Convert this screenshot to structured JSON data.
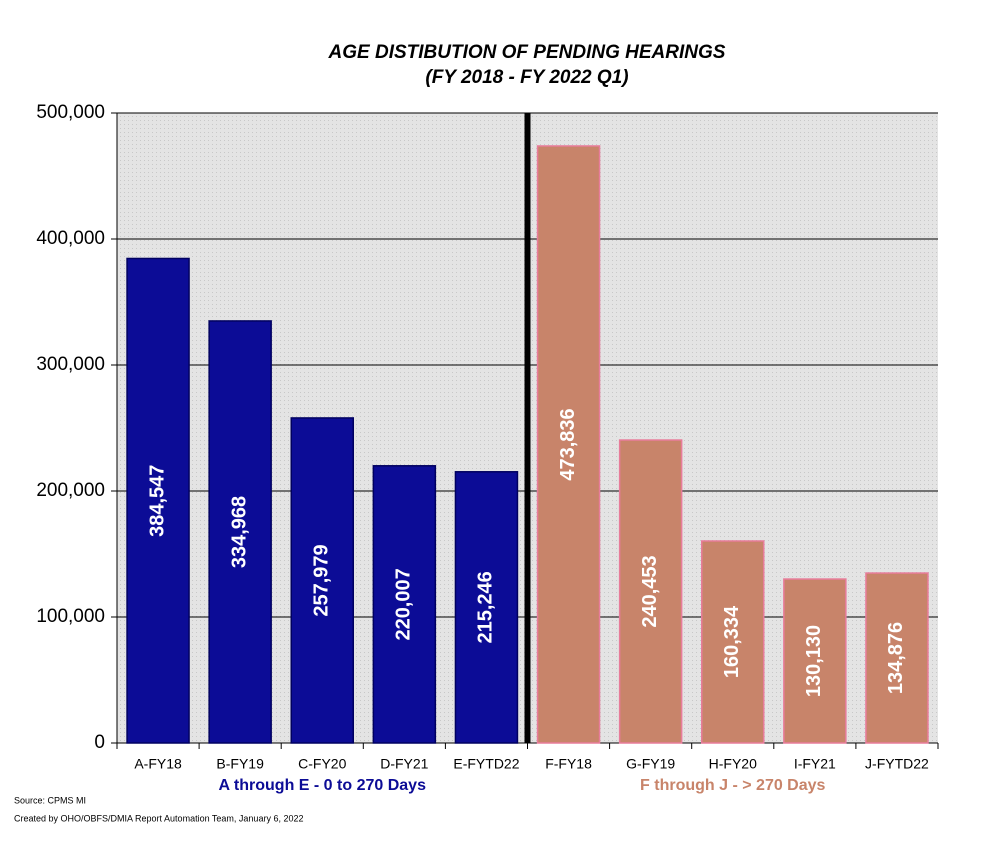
{
  "chart_data": {
    "type": "bar",
    "title": "AGE DISTIBUTION OF PENDING HEARINGS",
    "subtitle": "(FY 2018 - FY 2022 Q1)",
    "categories": [
      "A-FY18",
      "B-FY19",
      "C-FY20",
      "D-FY21",
      "E-FYTD22",
      "F-FY18",
      "G-FY19",
      "H-FY20",
      "I-FY21",
      "J-FYTD22"
    ],
    "series": [
      {
        "name": "A through E - 0 to 270 Days",
        "color": "#0c0c96",
        "border": "#000060",
        "values": [
          384547,
          334968,
          257979,
          220007,
          215246,
          null,
          null,
          null,
          null,
          null
        ],
        "value_labels": [
          "384,547",
          "334,968",
          "257,979",
          "220,007",
          "215,246",
          null,
          null,
          null,
          null,
          null
        ]
      },
      {
        "name": "F through J - > 270 Days",
        "color": "#c8846a",
        "border": "#e87c9a",
        "values": [
          null,
          null,
          null,
          null,
          null,
          473836,
          240453,
          160334,
          130130,
          134876
        ],
        "value_labels": [
          null,
          null,
          null,
          null,
          null,
          "473,836",
          "240,453",
          "160,334",
          "130,130",
          "134,876"
        ]
      }
    ],
    "ylim": [
      0,
      500000
    ],
    "yticks": [
      0,
      {
        "value": 100000,
        "label": "100,000"
      },
      {
        "value": 200000,
        "label": "200,000"
      },
      {
        "value": 300000,
        "label": "300,000"
      },
      {
        "value": 400000,
        "label": "400,000"
      },
      {
        "value": 500000,
        "label": "500,000"
      }
    ],
    "grid": true,
    "notes": [
      "Source: CPMS MI",
      "Created by OHO/OBFS/DMIA Report Automation Team, January  6, 2022"
    ]
  }
}
